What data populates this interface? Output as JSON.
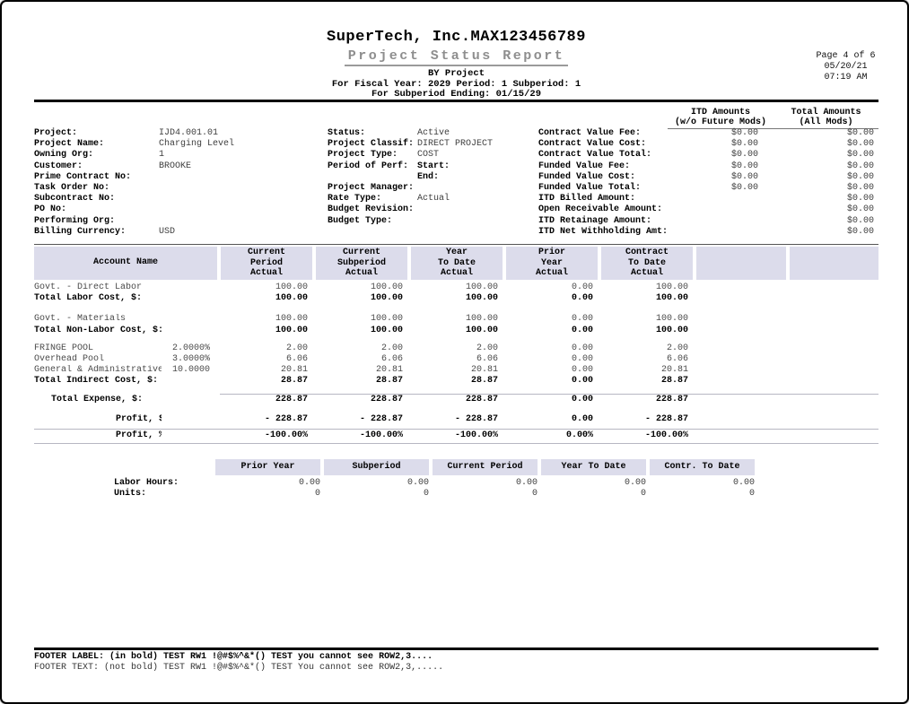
{
  "header": {
    "company": "SuperTech, Inc.MAX123456789",
    "title": "Project Status Report",
    "by_line": "BY Project",
    "fiscal_line": "For Fiscal Year: 2029 Period: 1 Subperiod: 1",
    "ending_line": "For Subperiod Ending: 01/15/29"
  },
  "page_info": {
    "page": "Page 4 of 6",
    "date": "05/20/21",
    "time": "07:19 AM"
  },
  "amounts_header": {
    "itd": "ITD Amounts\n(w/o Future Mods)",
    "total": "Total Amounts\n(All Mods)"
  },
  "info": {
    "left": [
      {
        "label": "Project:",
        "value": "IJD4.001.01"
      },
      {
        "label": "Project Name:",
        "value": "Charging Level"
      },
      {
        "label": "Owning Org:",
        "value": "1"
      },
      {
        "label": "Customer:",
        "value": "BROOKE"
      },
      {
        "label": "Prime Contract No:",
        "value": ""
      },
      {
        "label": "Task Order No:",
        "value": ""
      },
      {
        "label": "Subcontract No:",
        "value": ""
      },
      {
        "label": "PO No:",
        "value": ""
      },
      {
        "label": "Performing Org:",
        "value": ""
      },
      {
        "label": "Billing Currency:",
        "value": "USD"
      }
    ],
    "middle": [
      {
        "label": "Status:",
        "value": "Active"
      },
      {
        "label": "Project Classif:",
        "value": "DIRECT PROJECT"
      },
      {
        "label": "Project Type:",
        "value": "COST"
      },
      {
        "label": "Period of Perf:",
        "value": "Start:",
        "value_bold": true
      },
      {
        "label": "",
        "value": "End:",
        "value_bold": true
      },
      {
        "label": "Project Manager:",
        "value": ""
      },
      {
        "label": "Rate Type:",
        "value": "Actual"
      },
      {
        "label": "Budget Revision:",
        "value": ""
      },
      {
        "label": "Budget Type:",
        "value": ""
      }
    ],
    "right": [
      {
        "label": "Contract Value Fee:",
        "itd": "$0.00",
        "total": "$0.00"
      },
      {
        "label": "Contract Value Cost:",
        "itd": "$0.00",
        "total": "$0.00"
      },
      {
        "label": "Contract Value Total:",
        "itd": "$0.00",
        "total": "$0.00"
      },
      {
        "label": "Funded Value Fee:",
        "itd": "$0.00",
        "total": "$0.00"
      },
      {
        "label": "Funded Value Cost:",
        "itd": "$0.00",
        "total": "$0.00"
      },
      {
        "label": "Funded Value Total:",
        "itd": "$0.00",
        "total": "$0.00"
      },
      {
        "label": "ITD Billed Amount:",
        "itd": "",
        "total": "$0.00"
      },
      {
        "label": "Open Receivable Amount:",
        "itd": "",
        "total": "$0.00"
      },
      {
        "label": "ITD Retainage Amount:",
        "itd": "",
        "total": "$0.00"
      },
      {
        "label": "ITD Net Withholding Amt:",
        "itd": "",
        "total": "$0.00"
      }
    ]
  },
  "main_table": {
    "account_header": "Account Name",
    "columns": [
      "Current\nPeriod\nActual",
      "Current\nSubperiod\nActual",
      "Year\nTo Date\nActual",
      "Prior\nYear\nActual",
      "Contract\nTo Date\nActual"
    ],
    "empty_column_count": 2,
    "rows": [
      {
        "type": "row",
        "name": "Govt. - Direct Labor",
        "pct": "",
        "values": [
          "100.00",
          "100.00",
          "100.00",
          "0.00",
          "100.00"
        ],
        "bold": false
      },
      {
        "type": "row",
        "name": "Total Labor Cost, $:",
        "pct": "",
        "values": [
          "100.00",
          "100.00",
          "100.00",
          "0.00",
          "100.00"
        ],
        "bold": true
      },
      {
        "type": "gap",
        "h": 11
      },
      {
        "type": "row",
        "name": "Govt. - Materials",
        "pct": "",
        "values": [
          "100.00",
          "100.00",
          "100.00",
          "0.00",
          "100.00"
        ],
        "bold": false
      },
      {
        "type": "row",
        "name": "Total Non-Labor Cost, $:",
        "pct": "",
        "values": [
          "100.00",
          "100.00",
          "100.00",
          "0.00",
          "100.00"
        ],
        "bold": true
      },
      {
        "type": "gap",
        "h": 8
      },
      {
        "type": "row",
        "name": "FRINGE POOL",
        "pct": "2.0000%",
        "values": [
          "2.00",
          "2.00",
          "2.00",
          "0.00",
          "2.00"
        ],
        "bold": false
      },
      {
        "type": "row",
        "name": "Overhead Pool",
        "pct": "3.0000%",
        "values": [
          "6.06",
          "6.06",
          "6.06",
          "0.00",
          "6.06"
        ],
        "bold": false
      },
      {
        "type": "row",
        "name": "General & Administrative",
        "pct": "10.0000",
        "values": [
          "20.81",
          "20.81",
          "20.81",
          "0.00",
          "20.81"
        ],
        "bold": false
      },
      {
        "type": "row",
        "name": "Total Indirect Cost, $:",
        "pct": "",
        "values": [
          "28.87",
          "28.87",
          "28.87",
          "0.00",
          "28.87"
        ],
        "bold": true
      },
      {
        "type": "gap",
        "h": 7
      },
      {
        "type": "rule_values"
      },
      {
        "type": "row",
        "name": "Total Expense, $:",
        "indent": 19,
        "pct": "",
        "values": [
          "228.87",
          "228.87",
          "228.87",
          "0.00",
          "228.87"
        ],
        "bold": true
      },
      {
        "type": "gap",
        "h": 10
      },
      {
        "type": "row",
        "name": "Profit, $:",
        "indent": 91,
        "pct": "",
        "values": [
          "- 228.87",
          "- 228.87",
          "- 228.87",
          "0.00",
          "- 228.87"
        ],
        "bold": true
      },
      {
        "type": "gap",
        "h": 3
      },
      {
        "type": "rule_full"
      },
      {
        "type": "row",
        "name": "Profit, %:",
        "indent": 91,
        "pct": "",
        "values": [
          "-100.00%",
          "-100.00%",
          "-100.00%",
          "0.00%",
          "-100.00%"
        ],
        "bold": true
      },
      {
        "type": "gap",
        "h": 1
      },
      {
        "type": "rule_full"
      }
    ]
  },
  "hours_table": {
    "columns": [
      "Prior Year",
      "Subperiod",
      "Current Period",
      "Year To Date",
      "Contr. To Date"
    ],
    "rows": [
      {
        "label": "Labor Hours:",
        "values": [
          "0.00",
          "0.00",
          "0.00",
          "0.00",
          "0.00"
        ]
      },
      {
        "label": "Units:",
        "values": [
          "0",
          "0",
          "0",
          "0",
          "0"
        ]
      }
    ]
  },
  "footer": {
    "label_line": "FOOTER LABEL: (in bold) TEST RW1 !@#$%^&*() TEST you cannot see ROW2,3....",
    "text_line": "FOOTER TEXT: (not bold) TEST RW1 !@#$%^&*() TEST You cannot see ROW2,3,....."
  },
  "colors": {
    "band": "#dcdceb",
    "title_gray": "#8e8e8e",
    "rule": "#000000"
  }
}
